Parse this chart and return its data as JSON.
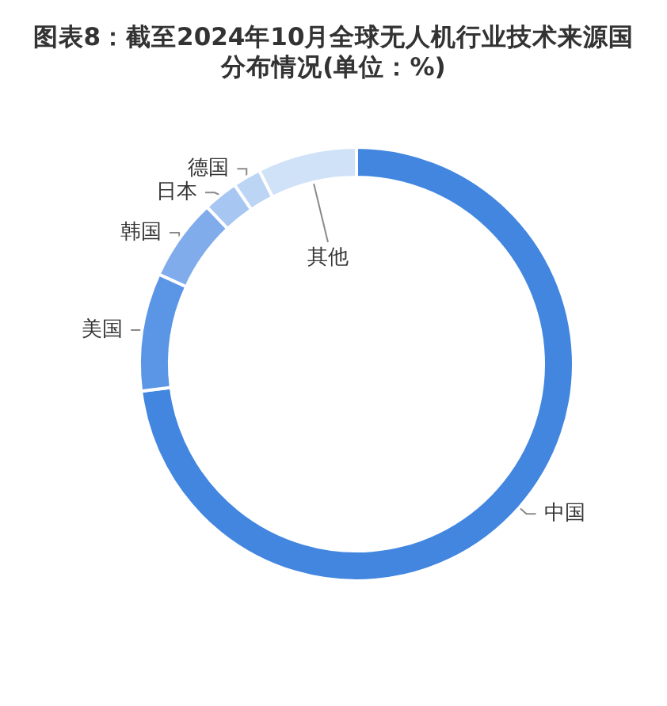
{
  "chart_data": {
    "type": "donut",
    "title": "图表8：截至2024年10月全球无人机行业技术来源国分布情况(单位：%)",
    "categories": [
      "中国",
      "美国",
      "韩国",
      "日本",
      "德国",
      "其他"
    ],
    "values": [
      73.0,
      8.8,
      6.1,
      2.6,
      2.1,
      7.4
    ],
    "colors": [
      "#4286e0",
      "#5b96e6",
      "#80acec",
      "#a7c7f2",
      "#bcd5f5",
      "#d0e2f8"
    ]
  }
}
